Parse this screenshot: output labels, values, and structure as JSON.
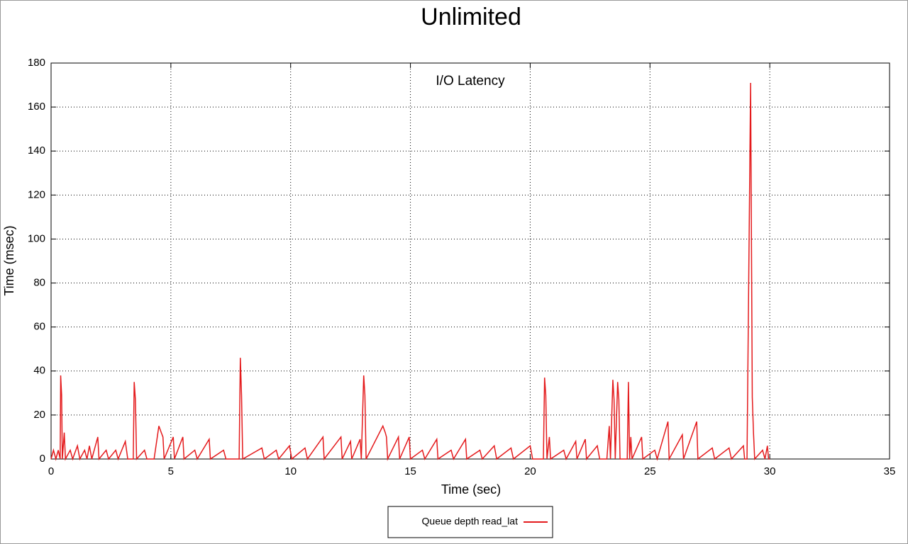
{
  "chart_data": {
    "type": "line",
    "title": "Unlimited",
    "annotation": "I/O Latency",
    "x_label": "Time (sec)",
    "y_label": "Time (msec)",
    "xlim": [
      0,
      35
    ],
    "xticks": [
      0,
      5,
      10,
      15,
      20,
      25,
      30,
      35
    ],
    "ylim": [
      0,
      180
    ],
    "yticks": [
      0,
      20,
      40,
      60,
      80,
      100,
      120,
      140,
      160,
      180
    ],
    "grid": true,
    "legend": "bottom",
    "x": [
      0,
      0.1,
      0.2,
      0.3,
      0.38,
      0.4,
      0.44,
      0.47,
      0.55,
      0.6,
      0.8,
      0.9,
      1.1,
      1.2,
      1.4,
      1.5,
      1.6,
      1.7,
      1.95,
      2.0,
      2.3,
      2.4,
      2.7,
      2.8,
      3.1,
      3.2,
      3.43,
      3.47,
      3.52,
      3.57,
      3.9,
      4.0,
      4.3,
      4.5,
      4.6,
      4.67,
      4.72,
      5.1,
      5.15,
      5.5,
      5.55,
      6.0,
      6.1,
      6.6,
      6.65,
      7.2,
      7.3,
      7.85,
      7.9,
      7.95,
      8.0,
      8.8,
      8.9,
      9.4,
      9.5,
      9.95,
      10.05,
      10.6,
      10.7,
      11.35,
      11.4,
      12.1,
      12.15,
      12.5,
      12.55,
      12.9,
      12.95,
      13.05,
      13.1,
      13.15,
      13.85,
      13.95,
      14.0,
      14.05,
      14.5,
      14.55,
      14.95,
      15.0,
      15.5,
      15.6,
      16.1,
      16.15,
      16.7,
      16.8,
      17.3,
      17.35,
      17.9,
      18.0,
      18.5,
      18.6,
      19.2,
      19.3,
      20.0,
      20.1,
      20.55,
      20.6,
      20.65,
      20.7,
      20.8,
      20.85,
      21.4,
      21.5,
      21.9,
      21.95,
      22.3,
      22.35,
      22.8,
      22.9,
      23.2,
      23.3,
      23.35,
      23.45,
      23.5,
      23.55,
      23.65,
      23.7,
      23.75,
      24.05,
      24.1,
      24.15,
      24.2,
      24.25,
      24.65,
      24.7,
      25.2,
      25.3,
      25.75,
      25.8,
      26.35,
      26.4,
      26.95,
      27.0,
      27.6,
      27.7,
      28.3,
      28.4,
      28.9,
      28.95,
      29.05,
      29.2,
      29.27,
      29.32,
      29.37,
      29.7,
      29.8,
      29.9,
      29.95,
      30.0
    ],
    "series": [
      {
        "name": "Queue depth read_lat",
        "color": "#e41a1c",
        "values": [
          0,
          4,
          0,
          4,
          0,
          38,
          29,
          0,
          12,
          0,
          4,
          0,
          6,
          0,
          4,
          0,
          6,
          0,
          10,
          0,
          4,
          0,
          4,
          0,
          8,
          0,
          0,
          35,
          27,
          0,
          4,
          0,
          0,
          15,
          12,
          10,
          0,
          10,
          0,
          10,
          0,
          4,
          0,
          9,
          0,
          4,
          0,
          0,
          46,
          29,
          0,
          5,
          0,
          4,
          0,
          6,
          0,
          5,
          0,
          10,
          0,
          10,
          0,
          8,
          0,
          9,
          0,
          38,
          29,
          0,
          15,
          12,
          10,
          0,
          10,
          0,
          10,
          0,
          4,
          0,
          9,
          0,
          4,
          0,
          9,
          0,
          4,
          0,
          6,
          0,
          5,
          0,
          6,
          0,
          0,
          37,
          29,
          0,
          10,
          0,
          4,
          0,
          8,
          0,
          9,
          0,
          6,
          0,
          0,
          15,
          0,
          36,
          27,
          0,
          35,
          27,
          0,
          0,
          35,
          0,
          10,
          0,
          10,
          0,
          4,
          0,
          17,
          0,
          11,
          0,
          17,
          0,
          5,
          0,
          5,
          0,
          6,
          0,
          0,
          171,
          28,
          12,
          0,
          4,
          0,
          6,
          0,
          0
        ]
      }
    ]
  }
}
